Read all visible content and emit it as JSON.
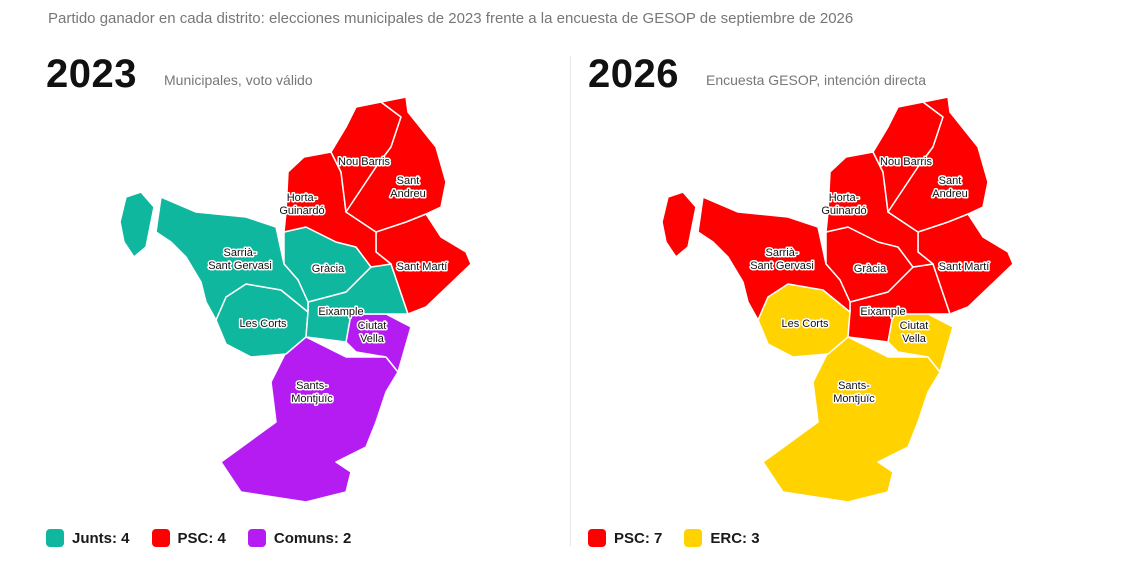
{
  "subtitle": "Partido ganador en cada distrito: elecciones municipales de 2023 frente a la encuesta de GESOP de septiembre de 2026",
  "parties": {
    "junts": {
      "name": "Junts",
      "color": "#10b79f"
    },
    "psc": {
      "name": "PSC",
      "color": "#ff0000"
    },
    "comuns": {
      "name": "Comuns",
      "color": "#b41cf2"
    },
    "erc": {
      "name": "ERC",
      "color": "#ffd200"
    }
  },
  "panels": {
    "left": {
      "year": "2023",
      "note": "Municipales, voto válido",
      "legend": [
        "Junts: 4",
        "PSC: 4",
        "Comuns: 2"
      ],
      "winners": {
        "nou_barris": "psc",
        "sant_andreu": "psc",
        "horta": "psc",
        "sant_marti": "psc",
        "sarria": "junts",
        "gracia": "junts",
        "les_corts": "junts",
        "eixample": "junts",
        "ciutat_vella": "comuns",
        "sants": "comuns"
      }
    },
    "right": {
      "year": "2026",
      "note": "Encuesta GESOP, intención directa",
      "legend": [
        "PSC: 7",
        "ERC: 3"
      ],
      "winners": {
        "nou_barris": "psc",
        "sant_andreu": "psc",
        "horta": "psc",
        "sant_marti": "psc",
        "sarria": "psc",
        "gracia": "psc",
        "eixample": "psc",
        "les_corts": "erc",
        "ciutat_vella": "erc",
        "sants": "erc"
      }
    }
  },
  "districts": {
    "nou_barris": [
      "Nou Barris"
    ],
    "sant_andreu": [
      "Sant",
      "Andreu"
    ],
    "horta": [
      "Horta-",
      "Guinardó"
    ],
    "sarria": [
      "Sarrià-",
      "Sant Gervasi"
    ],
    "gracia": [
      "Gràcia"
    ],
    "sant_marti": [
      "Sant Martí"
    ],
    "les_corts": [
      "Les Corts"
    ],
    "eixample": [
      "Eixample"
    ],
    "ciutat_vella": [
      "Ciutat",
      "Vella"
    ],
    "sants": [
      "Sants-",
      "Montjuïc"
    ]
  }
}
